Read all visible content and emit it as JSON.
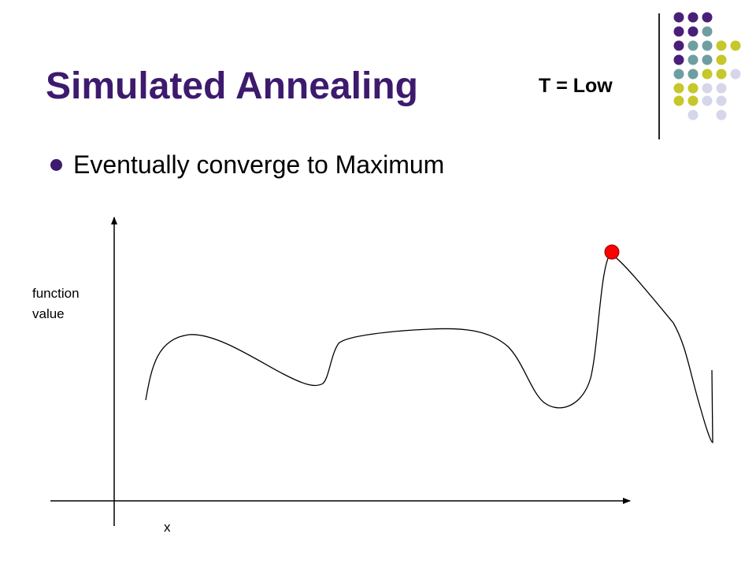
{
  "slide": {
    "title": "Simulated Annealing",
    "temperature_label": "T = Low",
    "bullets": [
      "Eventually converge to Maximum"
    ]
  },
  "diagram": {
    "y_axis_label": "function\nvalue",
    "x_axis_label": "x",
    "curve_color": "#000000",
    "marker_color": "#ff0000",
    "marker_description": "current solution at the maximum peak"
  },
  "theme": {
    "title_color": "#3d1a6e",
    "decor_colors": [
      "#4a1f7a",
      "#6f9ea0",
      "#c5c72a",
      "#d6d6ea"
    ]
  }
}
